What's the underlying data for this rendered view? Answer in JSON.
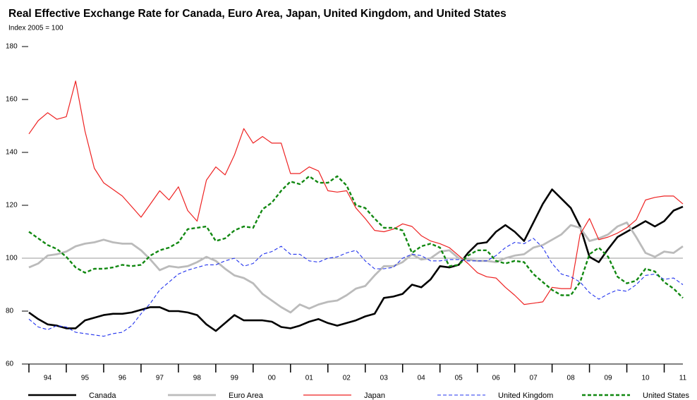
{
  "chart_data": {
    "type": "line",
    "title": "Real Effective Exchange Rate for Canada, Euro Area, Japan, United Kingdom, and United States",
    "subtitle": "Index 2005 = 100",
    "x": [
      1994,
      1994.25,
      1994.5,
      1994.75,
      1995,
      1995.25,
      1995.5,
      1995.75,
      1996,
      1996.25,
      1996.5,
      1996.75,
      1997,
      1997.25,
      1997.5,
      1997.75,
      1998,
      1998.25,
      1998.5,
      1998.75,
      1999,
      1999.25,
      1999.5,
      1999.75,
      2000,
      2000.25,
      2000.5,
      2000.75,
      2001,
      2001.25,
      2001.5,
      2001.75,
      2002,
      2002.25,
      2002.5,
      2002.75,
      2003,
      2003.25,
      2003.5,
      2003.75,
      2004,
      2004.25,
      2004.5,
      2004.75,
      2005,
      2005.25,
      2005.5,
      2005.75,
      2006,
      2006.25,
      2006.5,
      2006.75,
      2007,
      2007.25,
      2007.5,
      2007.75,
      2008,
      2008.25,
      2008.5,
      2008.75,
      2009,
      2009.25,
      2009.5,
      2009.75,
      2010,
      2010.25,
      2010.5,
      2010.75,
      2011,
      2011.25,
      2011.5
    ],
    "series": [
      {
        "name": "Canada",
        "color": "#000000",
        "dashed": false,
        "values": [
          79.5,
          77,
          75,
          74.5,
          73.5,
          73.5,
          76.5,
          77.5,
          78.5,
          79,
          79,
          79.5,
          80.5,
          81.5,
          81.5,
          80,
          80,
          79.5,
          78.5,
          75,
          72.5,
          75.5,
          78.5,
          76.5,
          76.5,
          76.5,
          76,
          74,
          73.5,
          74.5,
          76,
          77,
          75.5,
          74.5,
          75.5,
          76.5,
          78,
          79,
          85,
          85.5,
          86.5,
          90,
          89,
          92,
          97,
          96.5,
          97.5,
          102,
          105.5,
          106,
          110,
          112.5,
          110,
          106.5,
          113.5,
          120.5,
          126,
          122.5,
          119,
          112,
          100.5,
          98.5,
          103.5,
          108,
          110,
          112,
          114,
          112,
          114,
          118,
          119.5
        ]
      },
      {
        "name": "Euro Area",
        "color": "#bbbbbb",
        "dashed": false,
        "values": [
          96.5,
          98,
          101,
          101.5,
          102.5,
          104.5,
          105.5,
          106,
          107,
          106,
          105.5,
          105.5,
          103,
          99.5,
          95.5,
          97,
          96.5,
          97,
          98.5,
          100.5,
          99,
          96,
          93.5,
          92.5,
          90.5,
          86.5,
          84,
          81.5,
          79.5,
          82.5,
          81,
          82.5,
          83.5,
          84,
          86,
          88.5,
          89.5,
          93.5,
          97,
          97,
          98.5,
          101.5,
          99.5,
          100,
          102.5,
          103,
          100,
          99.5,
          99,
          99,
          98.5,
          100,
          101,
          101.5,
          104,
          105,
          107,
          109,
          112.5,
          111.5,
          106.5,
          107.5,
          109,
          112,
          113.5,
          108,
          102,
          100.5,
          102.5,
          102,
          104.5
        ]
      },
      {
        "name": "Japan",
        "color": "#ee2222",
        "dashed": false,
        "values": [
          147,
          152,
          155,
          152.5,
          153.5,
          167,
          148,
          134,
          128.5,
          126,
          123.5,
          119.5,
          115.5,
          120.5,
          125.5,
          122,
          127,
          118,
          114,
          129.5,
          134.5,
          131.5,
          139,
          149,
          143.5,
          146,
          143.5,
          143.5,
          132,
          132,
          134.5,
          133,
          125.5,
          125,
          125.5,
          119,
          115,
          110.5,
          110,
          111,
          113,
          112,
          108.5,
          106.5,
          105.5,
          104,
          101,
          98,
          94.5,
          93,
          92.5,
          89,
          86,
          82.5,
          83,
          83.5,
          89,
          88.5,
          88.5,
          109,
          115,
          107,
          108,
          109.5,
          111.5,
          114.5,
          122,
          123,
          123.5,
          123.5,
          120.5
        ]
      },
      {
        "name": "United Kingdom",
        "color": "#2233ee",
        "dashed": true,
        "values": [
          77,
          74,
          73,
          74.5,
          74,
          72,
          71.5,
          71,
          70.5,
          71.5,
          72,
          74.5,
          79,
          83,
          88,
          91,
          94,
          95.5,
          96.5,
          97.5,
          97.5,
          99,
          100,
          97,
          98,
          101.5,
          102.5,
          104.5,
          101.5,
          101.5,
          99,
          98.5,
          100,
          100.5,
          102,
          103,
          99,
          96,
          96,
          96.5,
          100,
          101.5,
          101,
          99,
          99,
          99.5,
          99.5,
          99,
          99,
          99,
          101,
          104,
          106,
          105.5,
          107.5,
          104,
          98,
          94,
          93,
          91,
          87,
          84.5,
          86.5,
          88,
          87.5,
          90,
          93.5,
          94,
          92,
          92.5,
          90
        ]
      },
      {
        "name": "United States",
        "color": "#118811",
        "dashed": true,
        "values": [
          110,
          107.5,
          105,
          103.5,
          100.5,
          96.5,
          94.5,
          96,
          96,
          96.5,
          97.5,
          97,
          97.5,
          101,
          103,
          104,
          106,
          111,
          111.5,
          112,
          106.5,
          107.5,
          110.5,
          112,
          111.5,
          118.5,
          121,
          125.5,
          129,
          128,
          131,
          128.5,
          128.5,
          131,
          127.5,
          120,
          119,
          115,
          111.5,
          111.5,
          110.5,
          102,
          104.5,
          105.5,
          104,
          97,
          97.5,
          101,
          103,
          103,
          99,
          98,
          99,
          98.5,
          94,
          91,
          88,
          86,
          86,
          91,
          101.5,
          104,
          100.5,
          93,
          90.5,
          91.5,
          96,
          95,
          91,
          88.5,
          85
        ]
      }
    ],
    "xlim": [
      1994,
      2011.5
    ],
    "xticks": [
      {
        "value": 1994.5,
        "label": "94"
      },
      {
        "value": 1995.5,
        "label": "95"
      },
      {
        "value": 1996.5,
        "label": "96"
      },
      {
        "value": 1997.5,
        "label": "97"
      },
      {
        "value": 1998.5,
        "label": "98"
      },
      {
        "value": 1999.5,
        "label": "99"
      },
      {
        "value": 2000.5,
        "label": "00"
      },
      {
        "value": 2001.5,
        "label": "01"
      },
      {
        "value": 2002.5,
        "label": "02"
      },
      {
        "value": 2003.5,
        "label": "03"
      },
      {
        "value": 2004.5,
        "label": "04"
      },
      {
        "value": 2005.5,
        "label": "05"
      },
      {
        "value": 2006.5,
        "label": "06"
      },
      {
        "value": 2007.5,
        "label": "07"
      },
      {
        "value": 2008.5,
        "label": "08"
      },
      {
        "value": 2009.5,
        "label": "09"
      },
      {
        "value": 2010.5,
        "label": "10"
      },
      {
        "value": 2011.5,
        "label": "11"
      }
    ],
    "ylim": [
      60,
      180
    ],
    "yticks": [
      60,
      80,
      100,
      120,
      140,
      160,
      180
    ],
    "reference_line": 100,
    "legend": "bottom"
  }
}
